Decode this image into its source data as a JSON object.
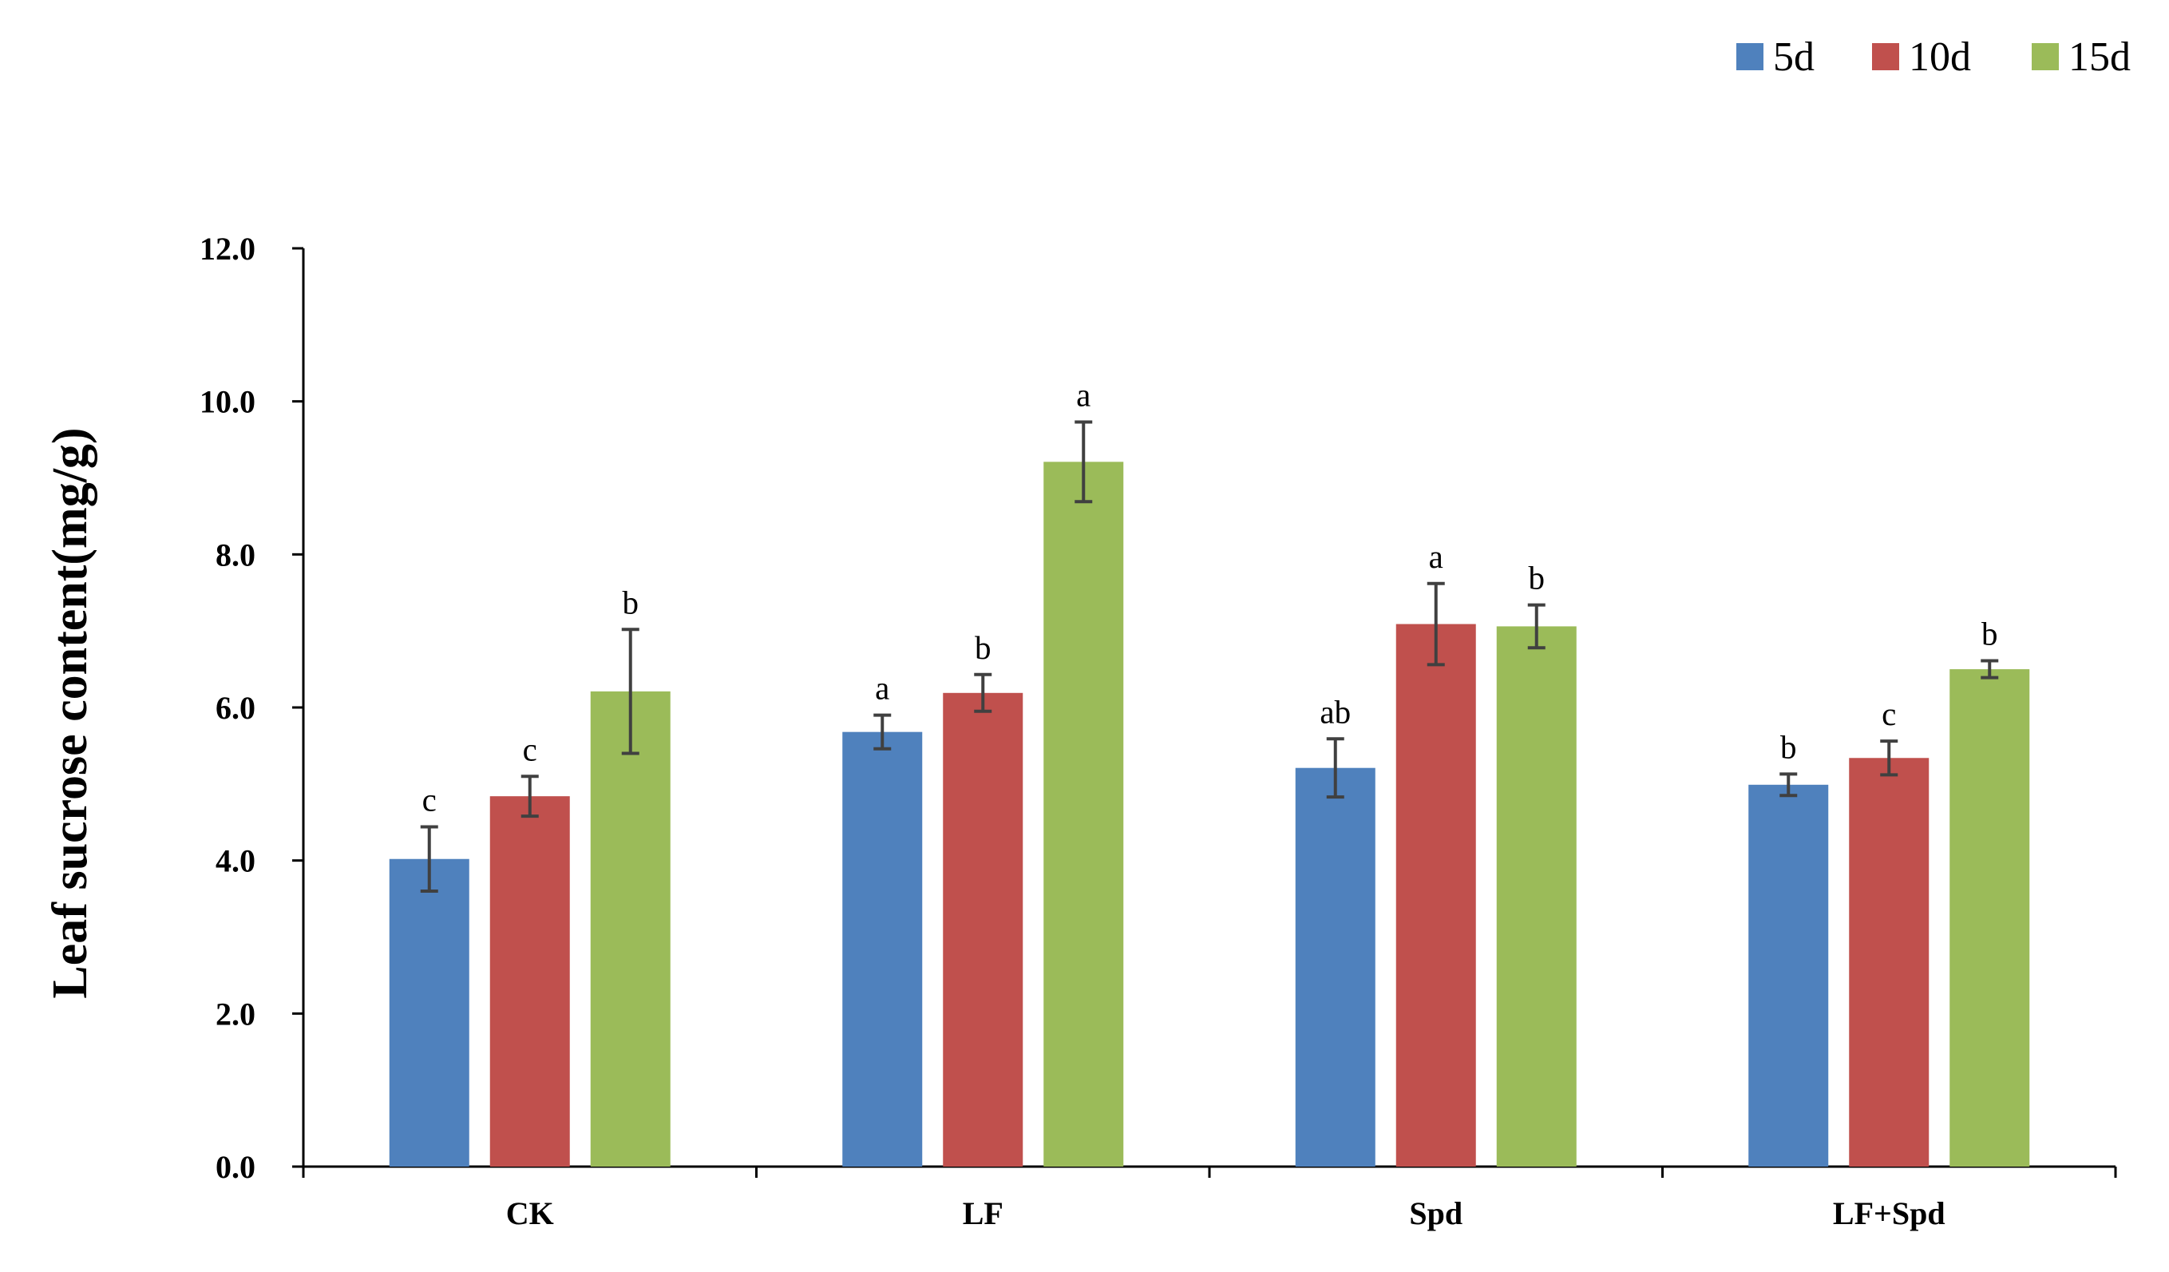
{
  "chart_data": {
    "type": "bar",
    "title": "",
    "xlabel": "",
    "ylabel": "Leaf sucrose content(mg/g)",
    "ylim": [
      0,
      12
    ],
    "yticks": [
      "0.0",
      "2.0",
      "4.0",
      "6.0",
      "8.0",
      "10.0",
      "12.0"
    ],
    "categories": [
      "CK",
      "LF",
      "Spd",
      "LF+Spd"
    ],
    "legend_position": "top-right",
    "grid": false,
    "series": [
      {
        "name": "5d",
        "color": "#4F81BD",
        "values": [
          4.02,
          5.68,
          5.21,
          4.99
        ],
        "errors": [
          0.42,
          0.22,
          0.38,
          0.14
        ],
        "significance": [
          "c",
          "a",
          "ab",
          "b"
        ]
      },
      {
        "name": "10d",
        "color": "#C0504D",
        "values": [
          4.84,
          6.19,
          7.09,
          5.34
        ],
        "errors": [
          0.26,
          0.24,
          0.53,
          0.22
        ],
        "significance": [
          "c",
          "b",
          "a",
          "c"
        ]
      },
      {
        "name": "15d",
        "color": "#9BBB59",
        "values": [
          6.21,
          9.21,
          7.06,
          6.5
        ],
        "errors": [
          0.81,
          0.52,
          0.28,
          0.11
        ],
        "significance": [
          "b",
          "a",
          "b",
          "b"
        ]
      }
    ]
  }
}
